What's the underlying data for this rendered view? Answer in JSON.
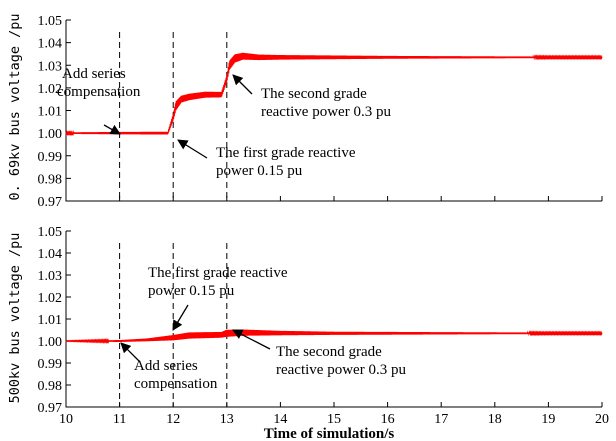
{
  "chart_data": [
    {
      "type": "line",
      "ylabel": "0. 69kv bus voltage /pu",
      "xlabel": "",
      "xlim": [
        10,
        20
      ],
      "ylim": [
        0.97,
        1.05
      ],
      "x_ticks": [
        "10",
        "11",
        "12",
        "13",
        "14",
        "15",
        "16",
        "17",
        "18",
        "19",
        "20"
      ],
      "y_ticks": [
        "0.97",
        "0.98",
        "0.99",
        "1.00",
        "1.01",
        "1.02",
        "1.03",
        "1.04",
        "1.05"
      ],
      "dashed_vertical_lines_x": [
        11,
        12,
        13
      ],
      "series": [
        {
          "color": "#ff0000",
          "x": [
            10,
            11,
            11.9,
            12.0,
            12.05,
            12.15,
            12.3,
            12.6,
            12.9,
            13.0,
            13.05,
            13.15,
            13.3,
            13.6,
            14,
            15,
            16,
            17,
            18,
            19,
            20
          ],
          "values": [
            1.0,
            1.0,
            1.0,
            1.007,
            1.012,
            1.015,
            1.016,
            1.017,
            1.017,
            1.024,
            1.03,
            1.033,
            1.034,
            1.0335,
            1.0335,
            1.0335,
            1.0335,
            1.0335,
            1.0335,
            1.0335,
            1.0335
          ],
          "oscillation_amplitude": [
            0.0003,
            0.0005,
            0.0006,
            0.0015,
            0.002,
            0.0015,
            0.0014,
            0.0013,
            0.0012,
            0.0015,
            0.002,
            0.0018,
            0.0015,
            0.0012,
            0.001,
            0.0008,
            0.0006,
            0.0005,
            0.0004,
            0.0003,
            0.0003
          ]
        }
      ],
      "annotations": [
        {
          "text": [
            "Add series",
            "compensation"
          ],
          "points_to_x": 11.1,
          "points_to_y": 1.0
        },
        {
          "text": [
            "The first grade reactive",
            "power 0.15 pu"
          ],
          "points_to_x": 12.05,
          "points_to_y": 1.008
        },
        {
          "text": [
            "The second grade",
            "reactive power 0.3 pu"
          ],
          "points_to_x": 13.05,
          "points_to_y": 1.024
        }
      ]
    },
    {
      "type": "line",
      "ylabel": "500kv bus voltage /pu",
      "xlabel": "Time of simulation/s",
      "xlim": [
        10,
        20
      ],
      "ylim": [
        0.97,
        1.05
      ],
      "x_ticks": [
        "10",
        "11",
        "12",
        "13",
        "14",
        "15",
        "16",
        "17",
        "18",
        "19",
        "20"
      ],
      "y_ticks": [
        "0.97",
        "0.98",
        "0.99",
        "1.00",
        "1.01",
        "1.02",
        "1.03",
        "1.04",
        "1.05"
      ],
      "dashed_vertical_lines_x": [
        11,
        12,
        13
      ],
      "series": [
        {
          "color": "#ff0000",
          "x": [
            10,
            11,
            11.5,
            12.0,
            12.3,
            12.9,
            13.0,
            13.3,
            14,
            15,
            16,
            17,
            18,
            19,
            20
          ],
          "values": [
            1.0,
            1.0,
            1.0005,
            1.0015,
            1.0025,
            1.0028,
            1.0035,
            1.0038,
            1.0036,
            1.0035,
            1.0035,
            1.0035,
            1.0035,
            1.0035,
            1.0035
          ],
          "oscillation_amplitude": [
            0.0001,
            0.0004,
            0.0006,
            0.0012,
            0.0014,
            0.0013,
            0.0016,
            0.0014,
            0.001,
            0.0007,
            0.0006,
            0.0005,
            0.0004,
            0.0003,
            0.0003
          ]
        }
      ],
      "annotations": [
        {
          "text": [
            "The first grade reactive",
            "power 0.15 pu"
          ],
          "points_to_x": 12.0,
          "points_to_y": 1.002
        },
        {
          "text": [
            "Add series",
            "compensation"
          ],
          "points_to_x": 11.0,
          "points_to_y": 1.0
        },
        {
          "text": [
            "The second grade",
            "reactive power 0.3 pu"
          ],
          "points_to_x": 13.1,
          "points_to_y": 1.003
        }
      ]
    }
  ]
}
